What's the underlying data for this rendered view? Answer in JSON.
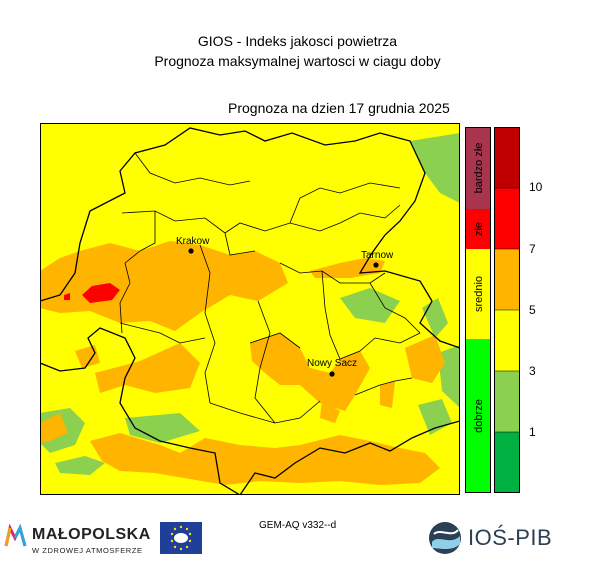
{
  "header": {
    "title": "GIOS - Indeks jakosci powietrza",
    "subtitle": "Prognoza maksymalnej wartosci w ciagu doby",
    "forecast_date": "Prognoza na dzien  17 grudnia 2025"
  },
  "map": {
    "cities": [
      {
        "name": "Krakow"
      },
      {
        "name": "Tarnow"
      },
      {
        "name": "Nowy Sacz"
      }
    ]
  },
  "legend": {
    "categories": [
      {
        "label": "bardzo złe",
        "color": "#a8344e"
      },
      {
        "label": "złe",
        "color": "#ff0000"
      },
      {
        "label": "srednio",
        "color": "#ffff00"
      },
      {
        "label": "dobrze",
        "color": "#00ff00"
      }
    ],
    "scale_colors": [
      "#00b040",
      "#8cd050",
      "#ffff00",
      "#ffb400",
      "#ff0000",
      "#c00000"
    ],
    "ticks": [
      "1",
      "3",
      "5",
      "7",
      "10"
    ]
  },
  "footer": {
    "model": "GEM-AQ v332--d",
    "malopolska_name": "MAŁOPOLSKA",
    "malopolska_tagline": "W ZDROWEJ ATMOSFERZE",
    "ios_name": "IOŚ-PIB"
  },
  "colors": {
    "good": "#8cd050",
    "moderate": "#ffff00",
    "sufficient": "#ffb400",
    "bad": "#ff0000",
    "border": "#000000"
  }
}
